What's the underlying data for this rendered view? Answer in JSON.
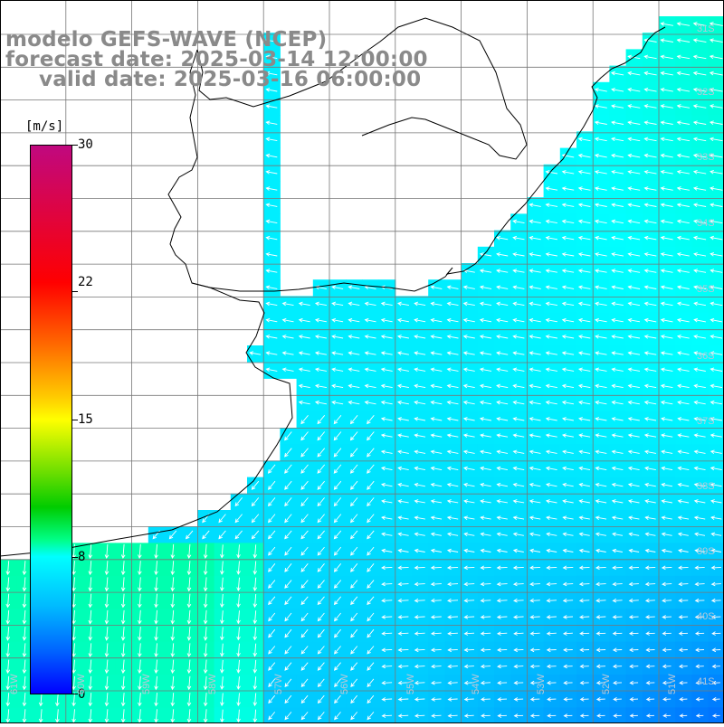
{
  "title": {
    "line1": "modelo GEFS-WAVE (NCEP)",
    "line2": "forecast date: 2025-03-14 12:00:00",
    "line3": "valid date: 2025-03-16 06:00:00"
  },
  "colorbar": {
    "unit": "[m/s]",
    "ticks": [
      "30",
      "22",
      "15",
      "8",
      "0"
    ],
    "tick_values": [
      30,
      22,
      15,
      8,
      0
    ],
    "range": [
      0,
      30
    ],
    "colors": [
      "#0000ff",
      "#0066ff",
      "#00bbff",
      "#00ffff",
      "#00ff88",
      "#00cc00",
      "#66dd00",
      "#ffff00",
      "#ffcc00",
      "#ff6600",
      "#ff0000",
      "#c0087f"
    ]
  },
  "axes": {
    "lat_labels": [
      "31S",
      "32S",
      "33S",
      "34S",
      "35S",
      "36S",
      "37S",
      "38S",
      "39S",
      "40S",
      "41S"
    ],
    "lon_labels": [
      "61W",
      "60W",
      "59W",
      "58W",
      "57W",
      "56W",
      "55W",
      "54W",
      "53W",
      "52W",
      "51W"
    ]
  },
  "colors": {
    "land": "#ffffff",
    "coast": "#000000",
    "grid": "#777777",
    "arrow": "#ffffff",
    "label": "#8a8a8a"
  }
}
